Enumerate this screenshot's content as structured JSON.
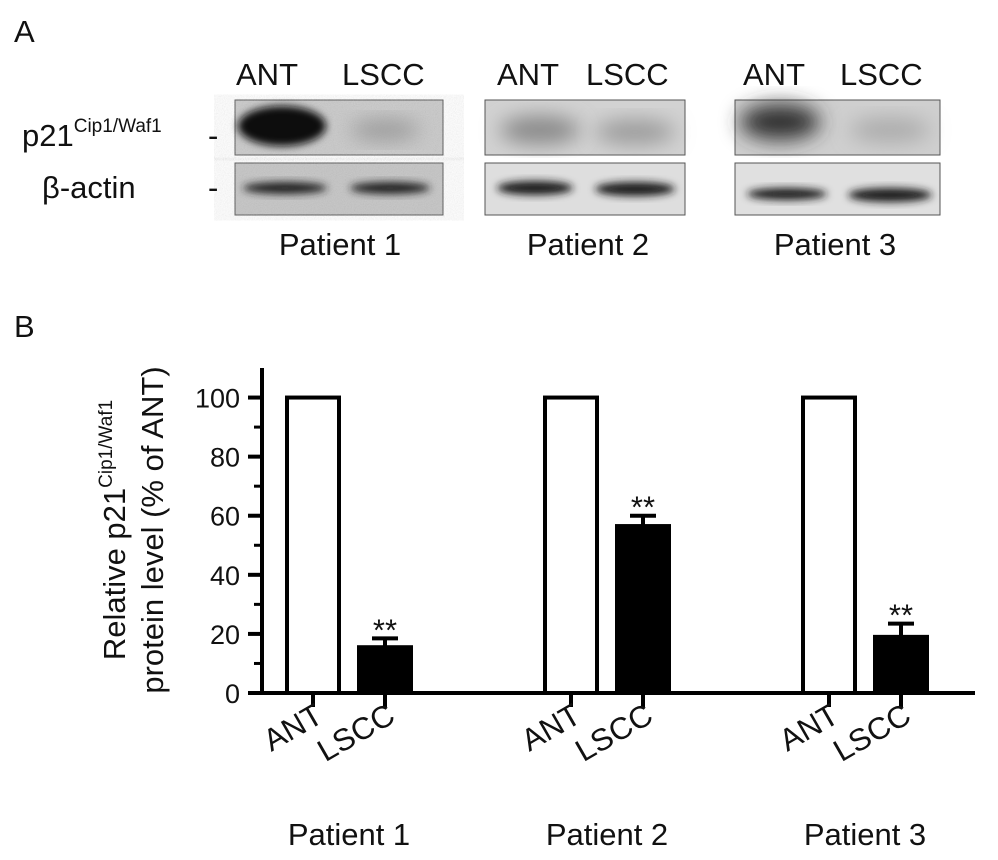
{
  "panel_a": {
    "label": "A",
    "blots": [
      {
        "lanes": [
          "ANT",
          "LSCC"
        ],
        "patient": "Patient 1"
      },
      {
        "lanes": [
          "ANT",
          "LSCC"
        ],
        "patient": "Patient 2"
      },
      {
        "lanes": [
          "ANT",
          "LSCC"
        ],
        "patient": "Patient 3"
      }
    ],
    "rows": [
      {
        "name": "p21",
        "superscript": "Cip1/Waf1",
        "dash": "-"
      },
      {
        "name": "β-actin",
        "dash": "-"
      }
    ]
  },
  "chart_data": {
    "type": "bar",
    "panel_label": "B",
    "ylabel": {
      "line1": "Relative p21",
      "superscript": "Cip1/Waf1",
      "line2": "protein level (% of ANT)"
    },
    "categories": [
      "Patient 1",
      "Patient 2",
      "Patient 3"
    ],
    "series": [
      {
        "name": "ANT",
        "color": "#ffffff",
        "edgecolor": "#000000",
        "values": [
          100,
          100,
          100
        ]
      },
      {
        "name": "LSCC",
        "color": "#000000",
        "edgecolor": "#000000",
        "values": [
          15.5,
          56.5,
          19
        ],
        "errors": [
          3,
          3.5,
          4.5
        ],
        "annotations": [
          "**",
          "**",
          "**"
        ]
      }
    ],
    "ylim": [
      0,
      110
    ],
    "yticks": [
      0,
      20,
      40,
      60,
      80,
      100
    ],
    "yminor_ticks": [
      10,
      30,
      50,
      70,
      90
    ],
    "grid": false,
    "legend": false
  }
}
